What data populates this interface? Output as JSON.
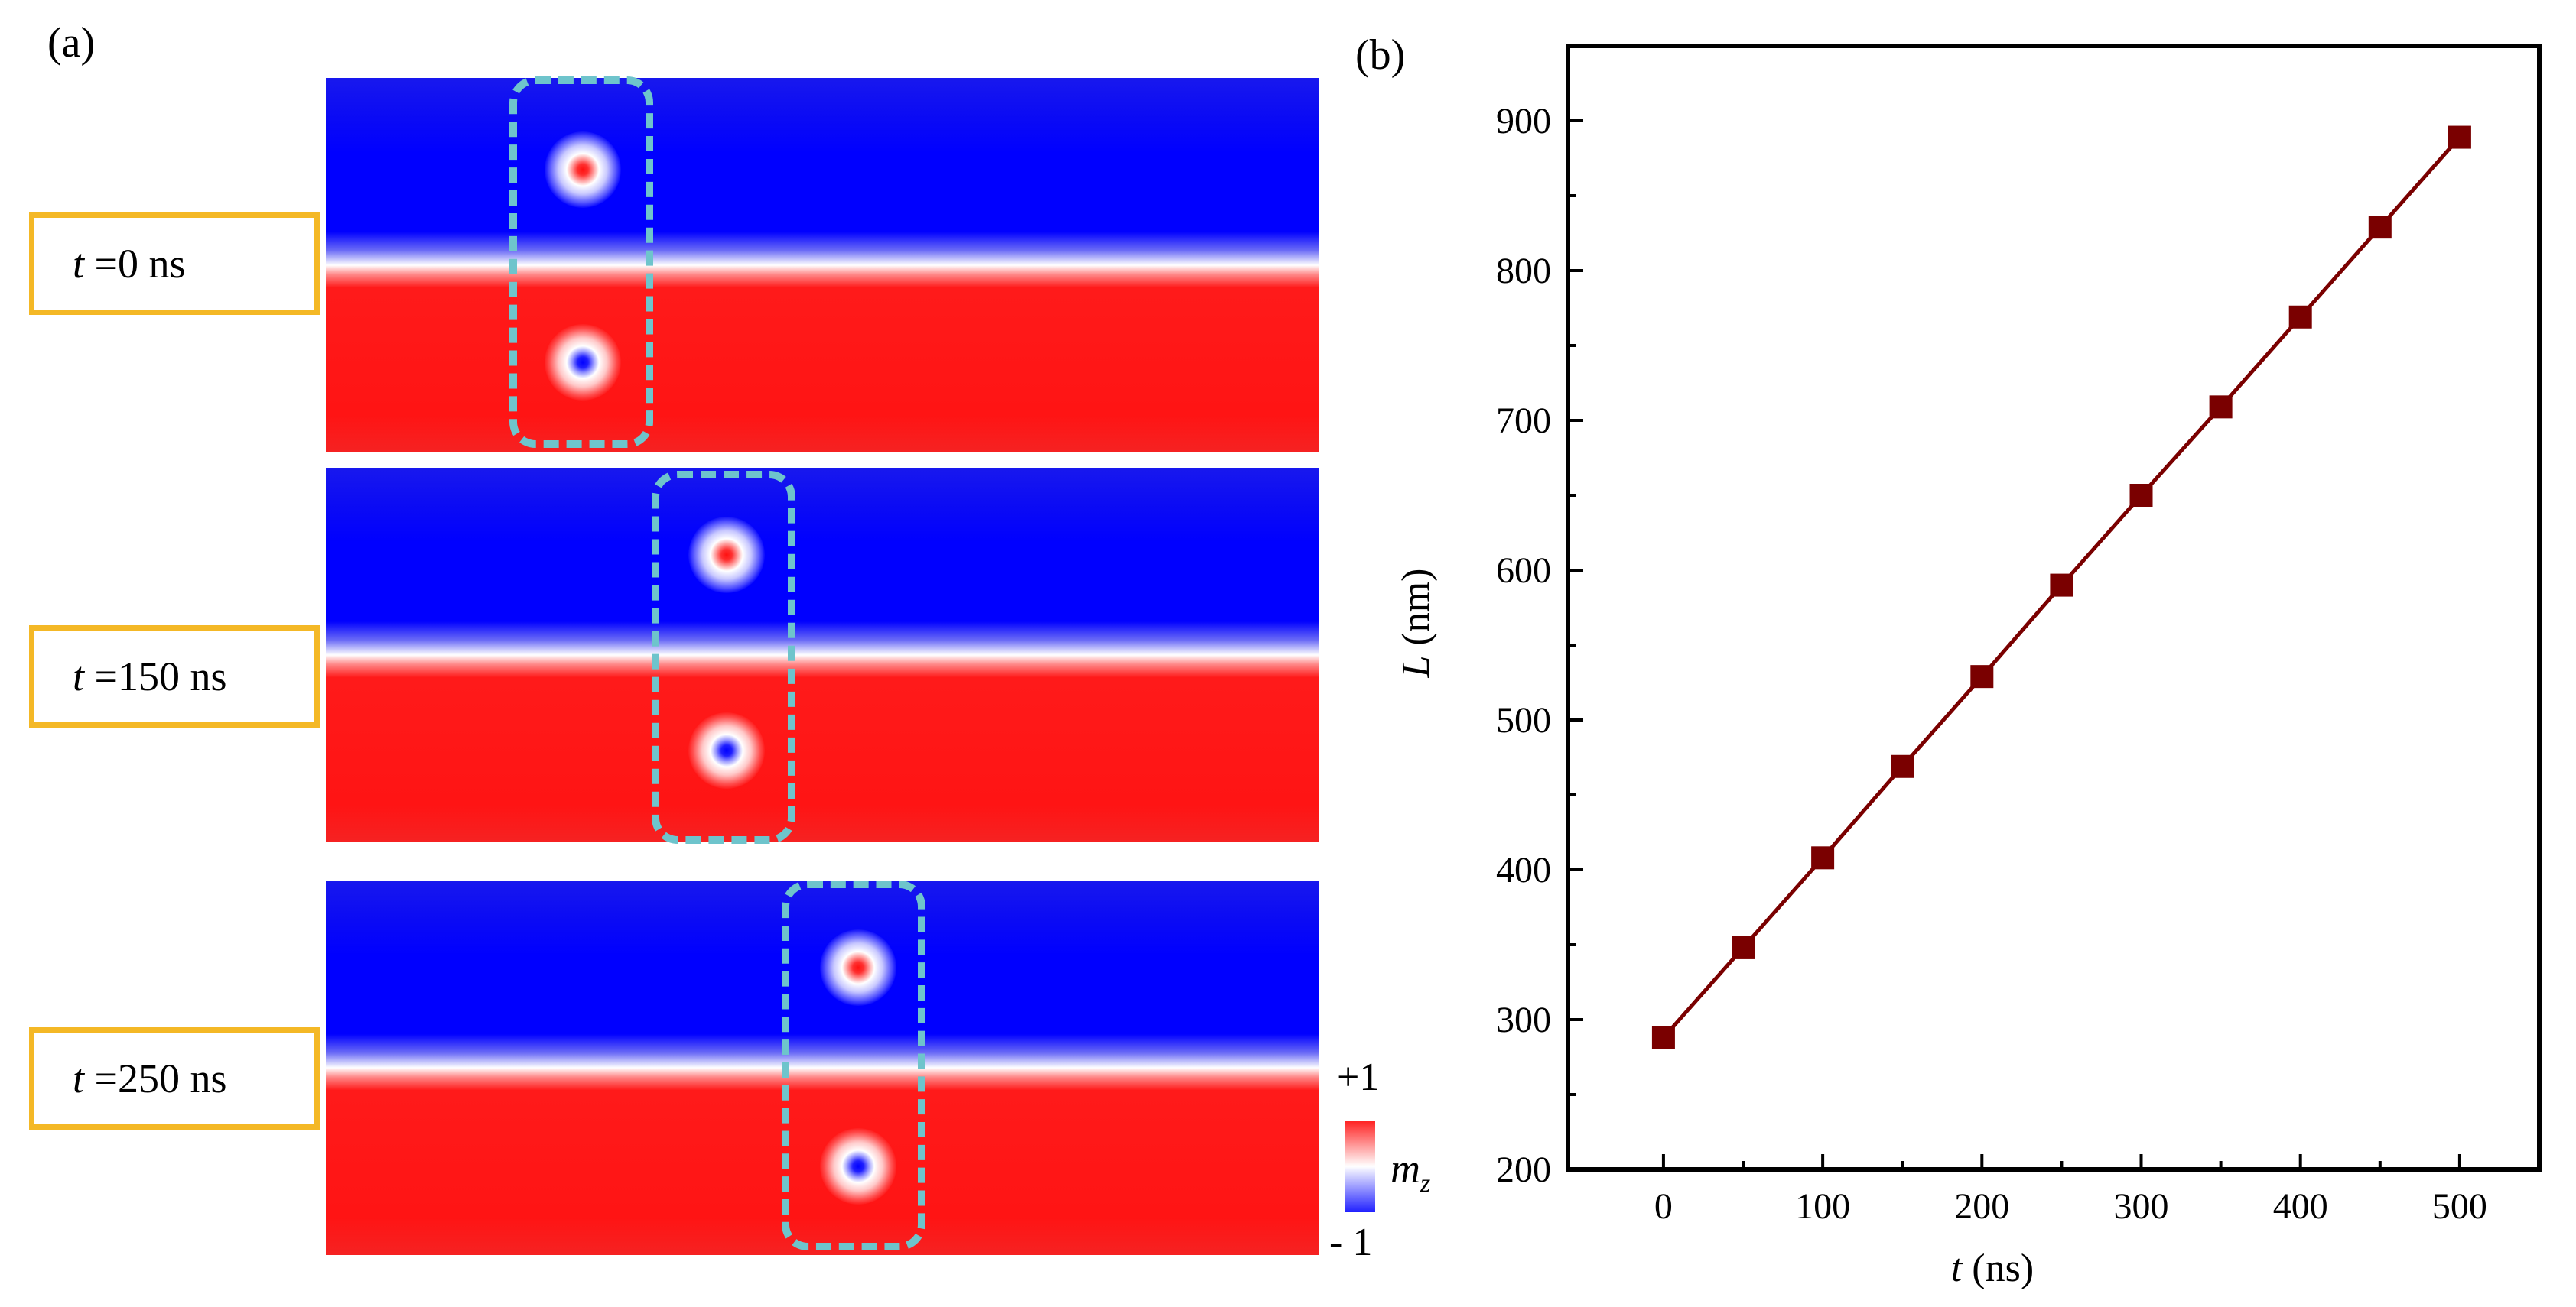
{
  "panel_a": {
    "label": "(a)",
    "time_labels": [
      {
        "symbol": "t",
        "text": " =0 ns"
      },
      {
        "symbol": "t",
        "text": " =150 ns"
      },
      {
        "symbol": "t",
        "text": " =250 ns"
      }
    ],
    "colorbar": {
      "max_label": "+1",
      "min_label": "- 1",
      "variable": "m",
      "subscript": "z",
      "colors": {
        "high": "#ff2020",
        "mid": "#ffffff",
        "low": "#2020ff"
      }
    },
    "colors": {
      "domain_up": "#0000ff",
      "domain_down": "#ff1414",
      "track_box": "#6ec4cc",
      "label_border": "#f4b826"
    }
  },
  "panel_b": {
    "label": "(b)"
  },
  "chart_data": {
    "type": "line",
    "title": "",
    "xlabel": {
      "symbol": "t",
      "unit": " (ns)"
    },
    "ylabel": {
      "symbol": "L",
      "unit": " (nm)"
    },
    "x": [
      0,
      50,
      100,
      150,
      200,
      250,
      300,
      350,
      400,
      450,
      500
    ],
    "series": [
      {
        "name": "L",
        "values": [
          288,
          348,
          408,
          469,
          529,
          590,
          650,
          709,
          769,
          829,
          889
        ],
        "color": "#7a0000",
        "marker": "square"
      }
    ],
    "xlim": [
      -60,
      550
    ],
    "ylim": [
      200,
      950
    ],
    "xticks": [
      0,
      100,
      200,
      300,
      400,
      500
    ],
    "yticks": [
      200,
      300,
      400,
      500,
      600,
      700,
      800,
      900
    ],
    "grid": false,
    "legend": "none"
  }
}
